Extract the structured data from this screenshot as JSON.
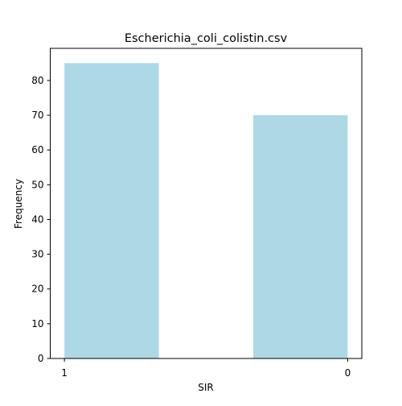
{
  "chart_data": {
    "type": "bar",
    "title": "Escherichia_coli_colistin.csv",
    "xlabel": "SIR",
    "ylabel": "Frequency",
    "categories": [
      "1",
      "0"
    ],
    "values": [
      85,
      70
    ],
    "bins": [
      {
        "category": "1",
        "x_start": 1.0,
        "x_end": 0.6667,
        "value": 85
      },
      {
        "category": "0",
        "x_start": 0.3333,
        "x_end": 0.0,
        "value": 70
      }
    ],
    "xticks": [
      {
        "value": 1,
        "label": "1"
      },
      {
        "value": 0,
        "label": "0"
      }
    ],
    "yticks": [
      0,
      10,
      20,
      30,
      40,
      50,
      60,
      70,
      80
    ],
    "xlim": [
      1.05,
      -0.05
    ],
    "ylim": [
      0,
      89.25
    ],
    "bar_color": "#add8e6",
    "grid": false,
    "legend": "none"
  }
}
